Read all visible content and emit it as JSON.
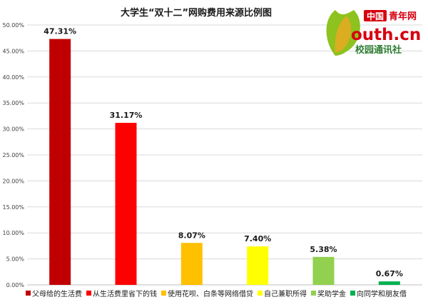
{
  "chart_data": {
    "type": "bar",
    "title": "大学生“双十二”网购费用来源比例图",
    "xlabel": "",
    "ylabel": "",
    "categories": [
      "父母给的生活费",
      "从生活费里省下的钱",
      "使用花呗、白条等网络借贷",
      "自己兼职所得",
      "奖助学金",
      "向同学和朋友借"
    ],
    "values": [
      47.31,
      31.17,
      8.07,
      7.4,
      5.38,
      0.67
    ],
    "data_labels": [
      "47.31%",
      "31.17%",
      "8.07%",
      "7.40%",
      "5.38%",
      "0.67%"
    ],
    "colors": [
      "#c00000",
      "#ff0000",
      "#ffc000",
      "#ffff00",
      "#92d050",
      "#00b050"
    ],
    "ylim": [
      0,
      50
    ],
    "yticks": [
      0,
      5,
      10,
      15,
      20,
      25,
      30,
      35,
      40,
      45,
      50
    ],
    "ytick_labels": [
      "0.00%",
      "5.00%",
      "10.00%",
      "15.00%",
      "20.00%",
      "25.00%",
      "30.00%",
      "35.00%",
      "40.00%",
      "45.00%",
      "50.00%"
    ],
    "grid": true,
    "legend_position": "bottom"
  },
  "logo": {
    "brand_china": "中国",
    "brand_youth_net": "青年网",
    "domain": "outh.cn",
    "campus": "校园通讯社"
  }
}
